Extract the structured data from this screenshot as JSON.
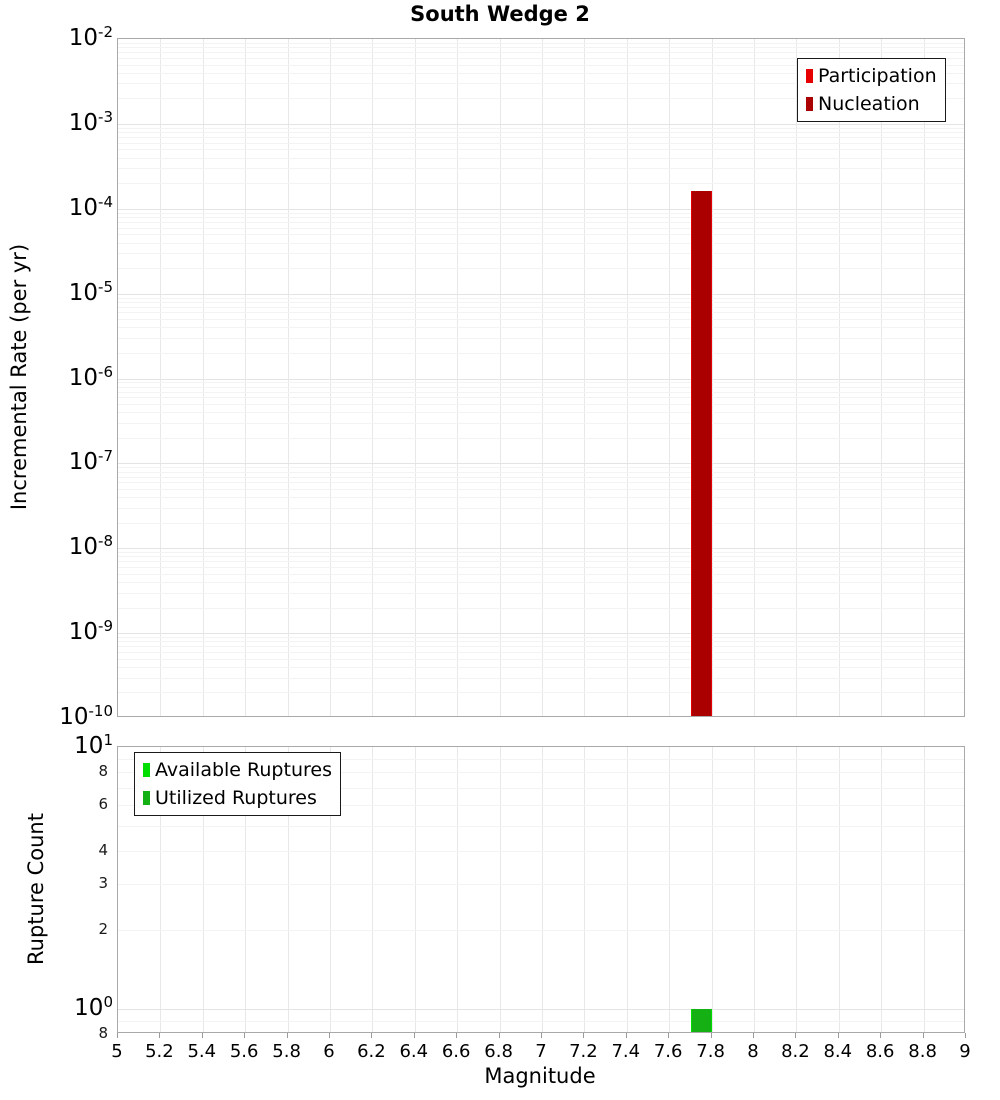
{
  "chart_data": [
    {
      "type": "bar",
      "title": "South Wedge 2",
      "xlabel": "",
      "ylabel": "Incremental Rate (per yr)",
      "yscale": "log",
      "xlim": [
        5,
        9
      ],
      "xtick_step": 0.2,
      "ylim": [
        1e-10,
        0.01
      ],
      "ytick_exponents": [
        -2,
        -3,
        -4,
        -5,
        -6,
        -7,
        -8,
        -9,
        -10
      ],
      "grid": true,
      "legend_position": "top-right",
      "bin_width": 0.1,
      "series": [
        {
          "name": "Participation",
          "color": "#e60000",
          "x": [
            7.75
          ],
          "values": [
            0.00016
          ]
        },
        {
          "name": "Nucleation",
          "color": "#aa0000",
          "x": [
            7.75
          ],
          "values": [
            0.00016
          ]
        }
      ]
    },
    {
      "type": "bar",
      "title": "",
      "xlabel": "Magnitude",
      "ylabel": "Rupture Count",
      "yscale": "log",
      "xlim": [
        5,
        9
      ],
      "xtick_step": 0.2,
      "ylim": [
        0.8,
        10
      ],
      "yticks": [
        {
          "label": "10",
          "sup": "1",
          "value": 10
        },
        {
          "label": "8",
          "value": 8
        },
        {
          "label": "6",
          "value": 6
        },
        {
          "label": "4",
          "value": 4
        },
        {
          "label": "3",
          "value": 3
        },
        {
          "label": "2",
          "value": 2
        },
        {
          "label": "10",
          "sup": "0",
          "value": 1
        },
        {
          "label": "8",
          "value": 0.8
        }
      ],
      "grid": true,
      "legend_position": "top-left",
      "bin_width": 0.1,
      "series": [
        {
          "name": "Available Ruptures",
          "color": "#00dd00",
          "x": [
            7.75
          ],
          "values": [
            1
          ]
        },
        {
          "name": "Utilized Ruptures",
          "color": "#14b014",
          "x": [
            7.75
          ],
          "values": [
            1
          ]
        }
      ]
    }
  ],
  "x_tick_labels": [
    "5",
    "5.2",
    "5.4",
    "5.6",
    "5.8",
    "6",
    "6.2",
    "6.4",
    "6.6",
    "6.8",
    "7",
    "7.2",
    "7.4",
    "7.6",
    "7.8",
    "8",
    "8.2",
    "8.4",
    "8.6",
    "8.8",
    "9"
  ]
}
